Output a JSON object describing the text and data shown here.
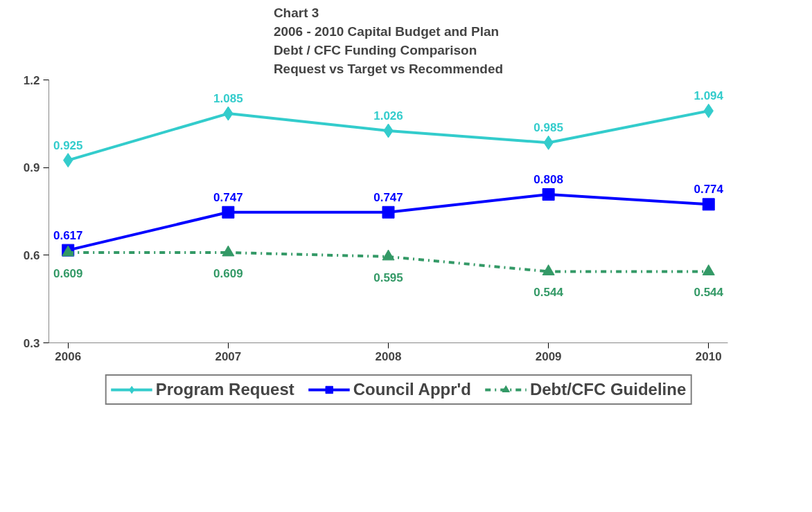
{
  "chart_data": {
    "type": "line",
    "title": "Chart 3\n2006 - 2010 Capital Budget and Plan\nDebt / CFC Funding Comparison\nRequest vs Target vs Recommended",
    "categories": [
      "2006",
      "2007",
      "2008",
      "2009",
      "2010"
    ],
    "ylim": [
      0.3,
      1.2
    ],
    "yticks": [
      0.3,
      0.6,
      0.9,
      1.2
    ],
    "grid": false,
    "legend": "bottom",
    "data_labels": true,
    "series": [
      {
        "name": "Program Request",
        "color": "#33cccc",
        "marker": "diamond",
        "line_style": "solid",
        "values": [
          0.925,
          1.085,
          1.026,
          0.985,
          1.094
        ]
      },
      {
        "name": "Council Appr'd",
        "color": "#0000ff",
        "marker": "square",
        "line_style": "solid",
        "values": [
          0.617,
          0.747,
          0.747,
          0.808,
          0.774
        ]
      },
      {
        "name": "Debt/CFC Guideline",
        "color": "#339966",
        "marker": "triangle",
        "line_style": "dashed",
        "values": [
          0.609,
          0.609,
          0.595,
          0.544,
          0.544
        ]
      }
    ]
  }
}
